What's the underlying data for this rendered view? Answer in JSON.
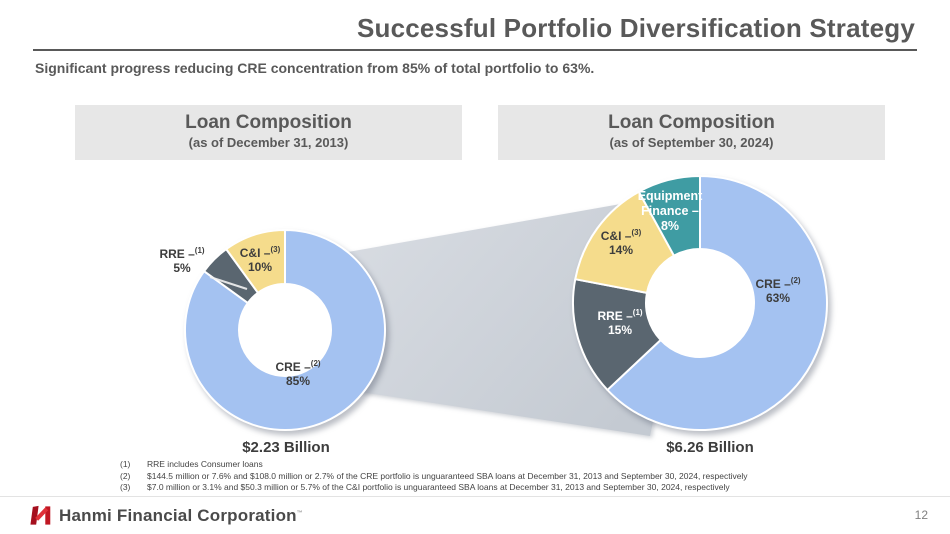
{
  "slide": {
    "title": "Successful Portfolio Diversification Strategy",
    "subtitle": "Significant progress reducing CRE concentration from 85% of total portfolio to 63%.",
    "page_number": "12"
  },
  "panels": [
    {
      "title": "Loan Composition",
      "subtitle": "(as of December 31, 2013)",
      "total": "$2.23 Billion"
    },
    {
      "title": "Loan Composition",
      "subtitle": "(as of September 30, 2024)",
      "total": "$6.26 Billion"
    }
  ],
  "chart_data": [
    {
      "type": "pie",
      "title": "Loan Composition (as of December 31, 2013)",
      "total_label": "$2.23 Billion",
      "categories": [
        "CRE",
        "RRE",
        "C&I"
      ],
      "values": [
        85,
        5,
        10
      ],
      "slices": [
        {
          "name": "CRE",
          "value": 85,
          "pct_label": "85%",
          "label": "CRE –",
          "footnote_marker": "(2)",
          "color": "#a4c2f1"
        },
        {
          "name": "RRE",
          "value": 5,
          "pct_label": "5%",
          "label": "RRE –",
          "footnote_marker": "(1)",
          "color": "#5a6670"
        },
        {
          "name": "C&I",
          "value": 10,
          "pct_label": "10%",
          "label": "C&I –",
          "footnote_marker": "(3)",
          "color": "#f5dc8c"
        }
      ]
    },
    {
      "type": "pie",
      "title": "Loan Composition (as of September 30, 2024)",
      "total_label": "$6.26 Billion",
      "categories": [
        "CRE",
        "RRE",
        "C&I",
        "Equipment Finance"
      ],
      "values": [
        63,
        15,
        14,
        8
      ],
      "slices": [
        {
          "name": "CRE",
          "value": 63,
          "pct_label": "63%",
          "label": "CRE –",
          "footnote_marker": "(2)",
          "color": "#a4c2f1"
        },
        {
          "name": "RRE",
          "value": 15,
          "pct_label": "15%",
          "label": "RRE –",
          "footnote_marker": "(1)",
          "color": "#5a6670"
        },
        {
          "name": "C&I",
          "value": 14,
          "pct_label": "14%",
          "label": "C&I –",
          "footnote_marker": "(3)",
          "color": "#f5dc8c"
        },
        {
          "name": "Equipment Finance",
          "value": 8,
          "pct_label": "8%",
          "label": "Equipment Finance –",
          "footnote_marker": "",
          "color": "#3f9ca3"
        }
      ]
    }
  ],
  "footnotes": [
    {
      "num": "(1)",
      "text": "RRE includes Consumer loans"
    },
    {
      "num": "(2)",
      "text": "$144.5 million or 7.6% and $108.0 million or 2.7% of the CRE portfolio is unguaranteed SBA loans at December 31, 2013 and September 30, 2024, respectively"
    },
    {
      "num": "(3)",
      "text": "$7.0 million or 3.1% and $50.3 million or 5.7% of the C&I portfolio is unguaranteed SBA loans at December 31, 2013 and September 30, 2024, respectively"
    }
  ],
  "footer": {
    "brand": "Hanmi Financial Corporation",
    "trademark": "™"
  },
  "colors": {
    "cre_blue": "#a4c2f1",
    "rre_slate": "#5a6670",
    "ci_yellow": "#f5dc8c",
    "equipment_teal": "#3f9ca3",
    "band_gray": "#ccd2d9",
    "heading_gray": "#595959",
    "logo_red": "#c01722"
  }
}
